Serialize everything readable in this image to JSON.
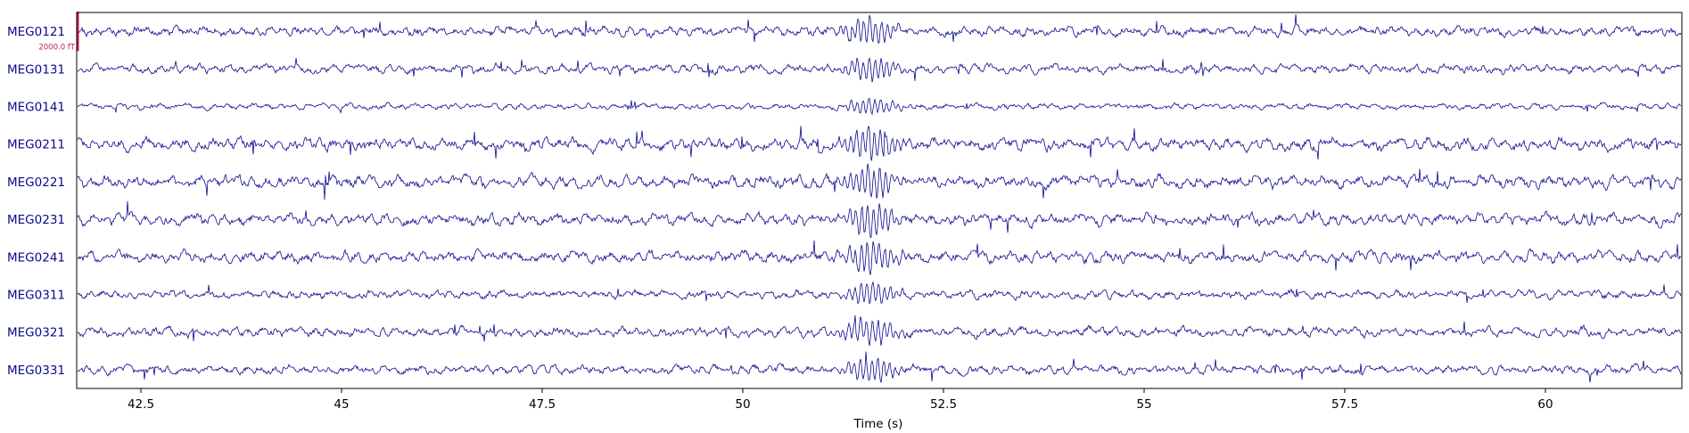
{
  "chart_data": {
    "type": "line",
    "xlabel": "Time (s)",
    "xlim": [
      41.7,
      61.7
    ],
    "x_ticks": [
      42.5,
      45,
      47.5,
      50,
      52.5,
      55,
      57.5,
      60
    ],
    "x_tick_labels": [
      "42.5",
      "45",
      "47.5",
      "50",
      "52.5",
      "55",
      "57.5",
      "60"
    ],
    "channels": [
      "MEG0121",
      "MEG0131",
      "MEG0141",
      "MEG0211",
      "MEG0221",
      "MEG0231",
      "MEG0241",
      "MEG0311",
      "MEG0321",
      "MEG0331"
    ],
    "channel_amplitude_fT": [
      620,
      560,
      380,
      780,
      760,
      740,
      720,
      520,
      600,
      560
    ],
    "burst_center_s": 51.6,
    "scale_bar": {
      "label": "2000.0 fT",
      "value_fT": 2000
    },
    "grid": false,
    "legend": "none"
  },
  "colors": {
    "trace": "#0a0a8c",
    "channel_label": "#0a0a8c",
    "scale_bar": "#c2185b",
    "axes": "#000000"
  }
}
